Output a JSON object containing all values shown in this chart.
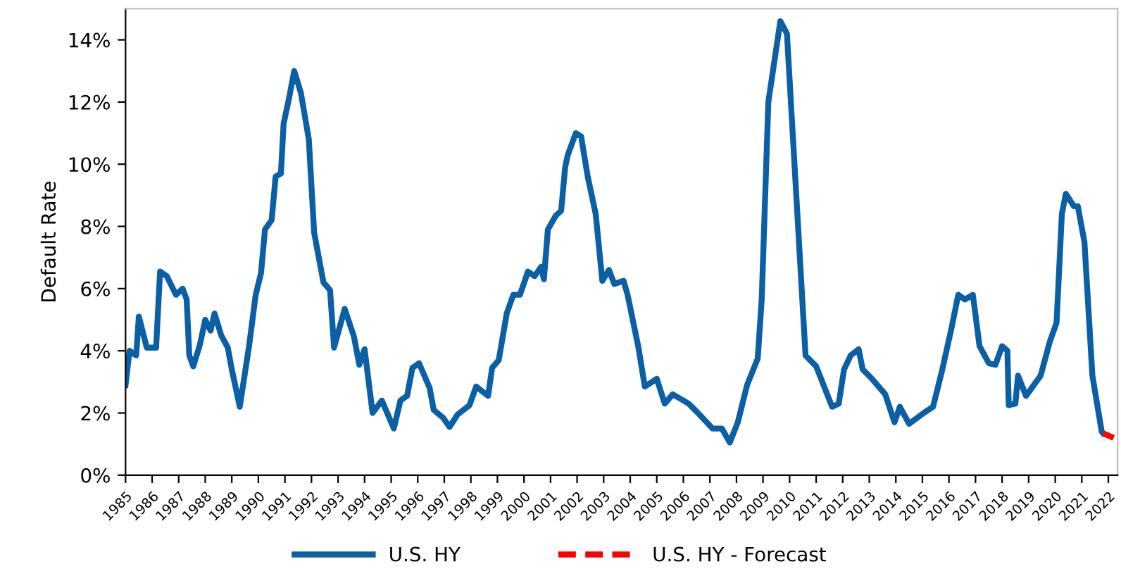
{
  "chart_data": {
    "type": "line",
    "ylabel": "Default Rate",
    "xlim": [
      1985,
      2022.35
    ],
    "xticks": [
      {
        "value": 1985,
        "label": "1985"
      },
      {
        "value": 1986,
        "label": "1986"
      },
      {
        "value": 1987,
        "label": "1987"
      },
      {
        "value": 1988,
        "label": "1988"
      },
      {
        "value": 1989,
        "label": "1989"
      },
      {
        "value": 1990,
        "label": "1990"
      },
      {
        "value": 1991,
        "label": "1991"
      },
      {
        "value": 1992,
        "label": "1992"
      },
      {
        "value": 1993,
        "label": "1993"
      },
      {
        "value": 1994,
        "label": "1994"
      },
      {
        "value": 1995,
        "label": "1995"
      },
      {
        "value": 1996,
        "label": "1996"
      },
      {
        "value": 1997,
        "label": "1997"
      },
      {
        "value": 1998,
        "label": "1998"
      },
      {
        "value": 1999,
        "label": "1999"
      },
      {
        "value": 2000,
        "label": "2000"
      },
      {
        "value": 2001,
        "label": "2001"
      },
      {
        "value": 2002,
        "label": "2002"
      },
      {
        "value": 2003,
        "label": "2003"
      },
      {
        "value": 2004,
        "label": "2004"
      },
      {
        "value": 2005,
        "label": "2005"
      },
      {
        "value": 2006,
        "label": "2006"
      },
      {
        "value": 2007,
        "label": "2007"
      },
      {
        "value": 2008,
        "label": "2008"
      },
      {
        "value": 2009,
        "label": "2009"
      },
      {
        "value": 2010,
        "label": "2010"
      },
      {
        "value": 2011,
        "label": "2011"
      },
      {
        "value": 2012,
        "label": "2012"
      },
      {
        "value": 2013,
        "label": "2013"
      },
      {
        "value": 2014,
        "label": "2014"
      },
      {
        "value": 2015,
        "label": "2015"
      },
      {
        "value": 2016,
        "label": "2016"
      },
      {
        "value": 2017,
        "label": "2017"
      },
      {
        "value": 2018,
        "label": "2018"
      },
      {
        "value": 2019,
        "label": "2019"
      },
      {
        "value": 2020,
        "label": "2020"
      },
      {
        "value": 2021,
        "label": "2021"
      },
      {
        "value": 2022,
        "label": "2022"
      }
    ],
    "ylim": [
      0,
      15
    ],
    "yticks": [
      {
        "value": 0,
        "label": "0%"
      },
      {
        "value": 2,
        "label": "2%"
      },
      {
        "value": 4,
        "label": "4%"
      },
      {
        "value": 6,
        "label": "6%"
      },
      {
        "value": 8,
        "label": "8%"
      },
      {
        "value": 10,
        "label": "10%"
      },
      {
        "value": 12,
        "label": "12%"
      },
      {
        "value": 14,
        "label": "14%"
      }
    ],
    "grid": false,
    "legend": "bottom",
    "marker": "none",
    "series": [
      {
        "name": "U.S. HY",
        "color": "#0b5fa5",
        "line_style": "solid",
        "x": [
          1985.0,
          1985.15,
          1985.4,
          1985.5,
          1985.8,
          1986.15,
          1986.3,
          1986.55,
          1986.9,
          1987.15,
          1987.3,
          1987.4,
          1987.55,
          1987.8,
          1988.0,
          1988.2,
          1988.35,
          1988.6,
          1988.85,
          1989.0,
          1989.3,
          1989.65,
          1989.9,
          1990.1,
          1990.25,
          1990.5,
          1990.65,
          1990.85,
          1990.95,
          1991.15,
          1991.35,
          1991.6,
          1991.9,
          1992.1,
          1992.45,
          1992.7,
          1992.85,
          1993.25,
          1993.6,
          1993.8,
          1994.0,
          1994.3,
          1994.65,
          1995.1,
          1995.35,
          1995.6,
          1995.8,
          1996.05,
          1996.45,
          1996.6,
          1996.95,
          1997.2,
          1997.5,
          1997.95,
          1998.2,
          1998.65,
          1998.8,
          1999.05,
          1999.35,
          1999.6,
          1999.85,
          2000.15,
          2000.4,
          2000.65,
          2000.75,
          2000.9,
          2001.2,
          2001.4,
          2001.55,
          2001.65,
          2001.95,
          2002.15,
          2002.4,
          2002.7,
          2002.95,
          2003.2,
          2003.4,
          2003.75,
          2003.9,
          2004.3,
          2004.55,
          2005.0,
          2005.3,
          2005.6,
          2006.2,
          2006.55,
          2007.1,
          2007.45,
          2007.75,
          2008.05,
          2008.4,
          2008.8,
          2008.95,
          2009.2,
          2009.65,
          2009.9,
          2010.6,
          2011.0,
          2011.6,
          2011.85,
          2012.05,
          2012.3,
          2012.6,
          2012.75,
          2013.1,
          2013.6,
          2013.95,
          2014.15,
          2014.5,
          2015.05,
          2015.4,
          2015.75,
          2016.1,
          2016.35,
          2016.6,
          2016.9,
          2017.15,
          2017.5,
          2017.75,
          2018.0,
          2018.2,
          2018.25,
          2018.5,
          2018.6,
          2018.9,
          2019.45,
          2019.8,
          2020.05,
          2020.25,
          2020.4,
          2020.7,
          2020.85,
          2021.1,
          2021.4,
          2021.75,
          2021.8
        ],
        "values": [
          2.9,
          4.0,
          3.85,
          5.1,
          4.1,
          4.1,
          6.55,
          6.4,
          5.8,
          6.0,
          5.65,
          3.85,
          3.5,
          4.2,
          5.0,
          4.65,
          5.2,
          4.5,
          4.1,
          3.4,
          2.2,
          4.15,
          5.8,
          6.5,
          7.9,
          8.2,
          9.6,
          9.7,
          11.3,
          12.1,
          13.0,
          12.3,
          10.8,
          7.8,
          6.2,
          5.95,
          4.1,
          5.35,
          4.45,
          3.55,
          4.05,
          2.0,
          2.4,
          1.5,
          2.4,
          2.55,
          3.45,
          3.6,
          2.8,
          2.1,
          1.85,
          1.55,
          1.95,
          2.25,
          2.85,
          2.55,
          3.45,
          3.7,
          5.2,
          5.8,
          5.8,
          6.55,
          6.4,
          6.7,
          6.3,
          7.9,
          8.35,
          8.5,
          9.9,
          10.3,
          11.0,
          10.9,
          9.6,
          8.4,
          6.25,
          6.6,
          6.15,
          6.25,
          5.8,
          4.15,
          2.85,
          3.1,
          2.3,
          2.6,
          2.3,
          2.0,
          1.5,
          1.5,
          1.05,
          1.7,
          2.9,
          3.75,
          5.65,
          12.0,
          14.6,
          14.2,
          3.85,
          3.5,
          2.2,
          2.3,
          3.4,
          3.85,
          4.05,
          3.4,
          3.1,
          2.6,
          1.7,
          2.2,
          1.65,
          2.0,
          2.2,
          3.4,
          4.75,
          5.8,
          5.65,
          5.8,
          4.15,
          3.6,
          3.55,
          4.15,
          4.0,
          2.25,
          2.3,
          3.2,
          2.55,
          3.2,
          4.3,
          4.9,
          8.4,
          9.05,
          8.65,
          8.65,
          7.5,
          3.2,
          1.4,
          1.35
        ]
      },
      {
        "name": "U.S. HY - Forecast",
        "color": "#ff0000",
        "line_style": "dashed",
        "x": [
          2021.8,
          2022.2
        ],
        "values": [
          1.35,
          1.2
        ]
      }
    ]
  }
}
